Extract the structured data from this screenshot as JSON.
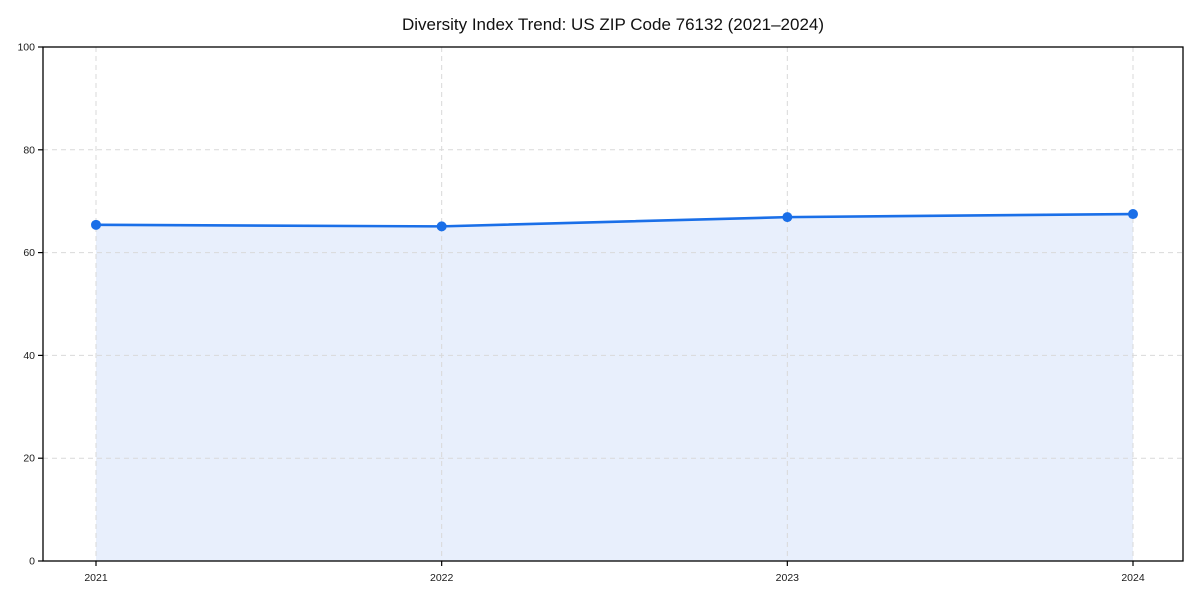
{
  "page": {
    "background": "#ffffff"
  },
  "chart_data": {
    "type": "area",
    "title": "Diversity Index Trend: US ZIP Code 76132 (2021–2024)",
    "categories": [
      "2021",
      "2022",
      "2023",
      "2024"
    ],
    "values": [
      65.4,
      65.1,
      66.9,
      67.5
    ],
    "xlabel": "",
    "ylabel": "",
    "ylim": [
      0,
      100
    ],
    "yticks": [
      0,
      20,
      40,
      60,
      80,
      100
    ],
    "grid": "dashed-both-axes",
    "legend": "none",
    "marker": "circle",
    "colors": {
      "line": "#1a6fe8",
      "marker": "#1a6fe8",
      "fill": "#e8effc",
      "grid": "#d9d9d9",
      "axis": "#000000",
      "tick_text": "#1a1a1a",
      "title_text": "#111111"
    }
  }
}
